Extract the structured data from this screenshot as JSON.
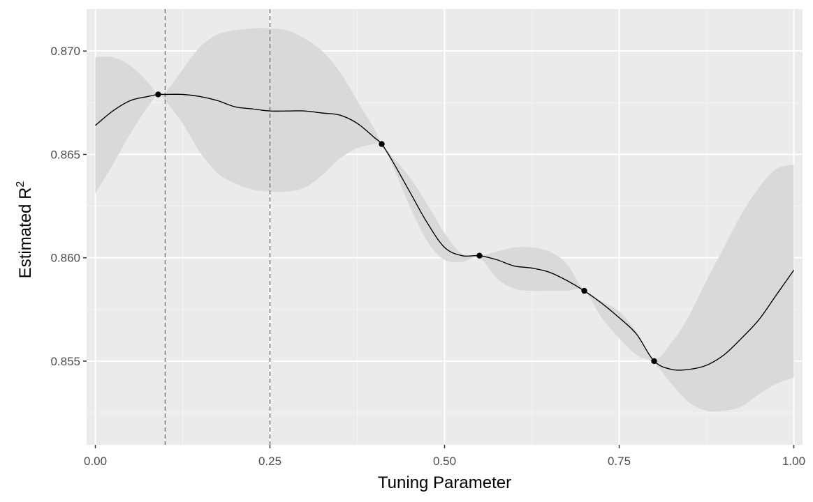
{
  "chart_data": {
    "type": "line",
    "title": "",
    "xlabel": "Tuning Parameter",
    "ylabel": "Estimated R",
    "ylabel_superscript": "2",
    "xlim": [
      -0.0125,
      1.0125
    ],
    "ylim": [
      0.85095,
      0.87203
    ],
    "x_ticks": [
      0.0,
      0.25,
      0.5,
      0.75,
      1.0
    ],
    "x_tick_labels": [
      "0.00",
      "0.25",
      "0.50",
      "0.75",
      "1.00"
    ],
    "y_ticks": [
      0.855,
      0.86,
      0.865,
      0.87
    ],
    "y_tick_labels": [
      "0.855",
      "0.860",
      "0.865",
      "0.870"
    ],
    "grid": true,
    "legend": "none",
    "colors": {
      "panel": "#ebebeb",
      "grid_major": "#ffffff",
      "grid_minor": "#f4f4f4",
      "ribbon": "#d9d9d9",
      "line": "#000000",
      "vline": "#7f7f7f",
      "tick_text": "#4d4d4d"
    },
    "vlines": [
      0.1,
      0.25
    ],
    "points": [
      {
        "x": 0.09,
        "y": 0.8679
      },
      {
        "x": 0.41,
        "y": 0.8655
      },
      {
        "x": 0.55,
        "y": 0.8601
      },
      {
        "x": 0.7,
        "y": 0.8584
      },
      {
        "x": 0.8,
        "y": 0.855
      }
    ],
    "series": [
      {
        "x": [
          0.0,
          0.025,
          0.05,
          0.075,
          0.09,
          0.1,
          0.125,
          0.15,
          0.175,
          0.2,
          0.225,
          0.25,
          0.275,
          0.3,
          0.325,
          0.35,
          0.375,
          0.4,
          0.41,
          0.425,
          0.45,
          0.475,
          0.5,
          0.525,
          0.55,
          0.575,
          0.6,
          0.625,
          0.65,
          0.675,
          0.7,
          0.725,
          0.75,
          0.775,
          0.8,
          0.825,
          0.85,
          0.875,
          0.9,
          0.925,
          0.95,
          0.975,
          1.0
        ],
        "y": [
          0.8664,
          0.8671,
          0.8676,
          0.8678,
          0.8679,
          0.8679,
          0.8679,
          0.8678,
          0.8676,
          0.8673,
          0.8672,
          0.8671,
          0.8671,
          0.8671,
          0.867,
          0.8669,
          0.8665,
          0.8658,
          0.8655,
          0.8647,
          0.8632,
          0.8617,
          0.8605,
          0.8601,
          0.8601,
          0.8599,
          0.8596,
          0.8595,
          0.8593,
          0.8589,
          0.8584,
          0.8578,
          0.8571,
          0.8563,
          0.855,
          0.8546,
          0.8546,
          0.8548,
          0.8553,
          0.8561,
          0.857,
          0.8582,
          0.8594
        ]
      }
    ],
    "ribbon": {
      "x": [
        0.0,
        0.025,
        0.05,
        0.075,
        0.09,
        0.1,
        0.125,
        0.15,
        0.175,
        0.2,
        0.225,
        0.25,
        0.275,
        0.3,
        0.325,
        0.35,
        0.375,
        0.4,
        0.41,
        0.425,
        0.45,
        0.475,
        0.5,
        0.525,
        0.55,
        0.575,
        0.6,
        0.625,
        0.65,
        0.675,
        0.7,
        0.725,
        0.75,
        0.775,
        0.8,
        0.825,
        0.85,
        0.875,
        0.9,
        0.925,
        0.95,
        0.975,
        1.0
      ],
      "lower": [
        0.8631,
        0.8645,
        0.866,
        0.8673,
        0.8679,
        0.8676,
        0.8665,
        0.8651,
        0.8641,
        0.8636,
        0.8633,
        0.8632,
        0.8632,
        0.8634,
        0.864,
        0.8648,
        0.8653,
        0.8655,
        0.8655,
        0.8645,
        0.8625,
        0.8608,
        0.8599,
        0.8598,
        0.86,
        0.859,
        0.8585,
        0.8584,
        0.8584,
        0.8584,
        0.8584,
        0.8571,
        0.8561,
        0.8553,
        0.8549,
        0.8539,
        0.853,
        0.8526,
        0.8526,
        0.8528,
        0.8534,
        0.8539,
        0.8542
      ],
      "upper": [
        0.8697,
        0.8697,
        0.8693,
        0.8685,
        0.8679,
        0.868,
        0.8691,
        0.8702,
        0.8708,
        0.871,
        0.8711,
        0.8711,
        0.871,
        0.8706,
        0.87,
        0.869,
        0.8676,
        0.8662,
        0.8655,
        0.8649,
        0.8639,
        0.8626,
        0.8612,
        0.8602,
        0.8601,
        0.8603,
        0.8605,
        0.8605,
        0.8603,
        0.8597,
        0.8584,
        0.8579,
        0.8574,
        0.8564,
        0.8551,
        0.8559,
        0.8572,
        0.8589,
        0.8605,
        0.8621,
        0.8634,
        0.8643,
        0.8645
      ]
    }
  }
}
